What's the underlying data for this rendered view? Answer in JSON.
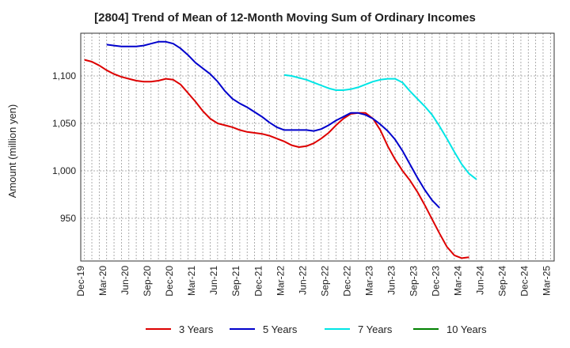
{
  "chart_data": {
    "type": "line",
    "title": "[2804]  Trend of Mean of 12-Month Moving Sum of Ordinary Incomes",
    "xlabel": "",
    "ylabel": "Amount (million yen)",
    "ylim": [
      905,
      1145
    ],
    "yticks": [
      950,
      1000,
      1050,
      1100
    ],
    "ytick_labels": [
      "950",
      "1,000",
      "1,050",
      "1,100"
    ],
    "x_tick_labels": [
      "Dec-19",
      "Mar-20",
      "Jun-20",
      "Sep-20",
      "Dec-20",
      "Mar-21",
      "Jun-21",
      "Sep-21",
      "Dec-21",
      "Mar-22",
      "Jun-22",
      "Sep-22",
      "Dec-22",
      "Mar-23",
      "Jun-23",
      "Sep-23",
      "Dec-23",
      "Mar-24",
      "Jun-24",
      "Sep-24",
      "Dec-24",
      "Mar-25"
    ],
    "x_count": 64,
    "grid": true,
    "legend_position": "bottom",
    "series": [
      {
        "name": "3 Years",
        "color": "#dd0000",
        "start_index": 0,
        "values": [
          1117,
          1115,
          1111,
          1106,
          1102,
          1099,
          1097,
          1095,
          1094,
          1094,
          1095,
          1097,
          1096,
          1091,
          1082,
          1073,
          1063,
          1055,
          1050,
          1048,
          1046,
          1043,
          1041,
          1040,
          1039,
          1037,
          1034,
          1031,
          1027,
          1025,
          1026,
          1029,
          1034,
          1040,
          1048,
          1055,
          1060,
          1061,
          1061,
          1055,
          1043,
          1026,
          1012,
          1000,
          990,
          978,
          964,
          949,
          934,
          920,
          911,
          908,
          909
        ]
      },
      {
        "name": "5 Years",
        "color": "#0000cc",
        "start_index": 3,
        "values": [
          1133,
          1132,
          1131,
          1131,
          1131,
          1132,
          1134,
          1136,
          1136,
          1134,
          1129,
          1122,
          1114,
          1108,
          1102,
          1094,
          1084,
          1076,
          1071,
          1067,
          1062,
          1057,
          1051,
          1046,
          1043,
          1043,
          1043,
          1043,
          1042,
          1044,
          1048,
          1053,
          1057,
          1061,
          1061,
          1059,
          1055,
          1049,
          1042,
          1033,
          1021,
          1007,
          993,
          980,
          969,
          961
        ]
      },
      {
        "name": "7 Years",
        "color": "#00e5e5",
        "start_index": 27,
        "values": [
          1101,
          1100,
          1098,
          1096,
          1093,
          1090,
          1087,
          1085,
          1085,
          1086,
          1088,
          1091,
          1094,
          1096,
          1097,
          1097,
          1093,
          1084,
          1076,
          1068,
          1059,
          1047,
          1034,
          1020,
          1007,
          997,
          991
        ]
      },
      {
        "name": "10 Years",
        "color": "#008000",
        "start_index": 0,
        "values": []
      }
    ]
  }
}
